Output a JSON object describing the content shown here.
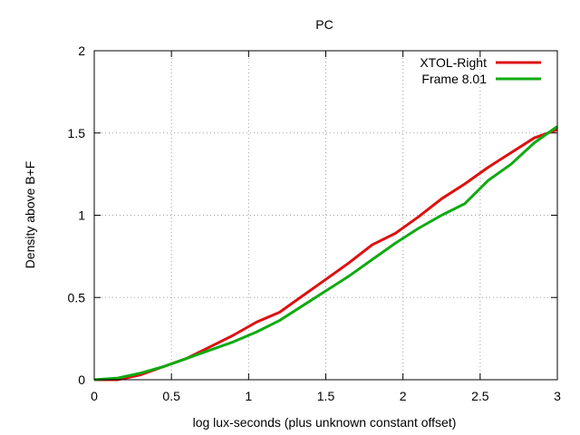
{
  "chart_data": {
    "type": "line",
    "title": "PC",
    "xlabel": "log lux-seconds (plus unknown constant offset)",
    "ylabel": "Density above B+F",
    "xlim": [
      0,
      3
    ],
    "ylim": [
      0,
      2
    ],
    "x_ticks": [
      0,
      0.5,
      1,
      1.5,
      2,
      2.5,
      3
    ],
    "x_tick_labels": [
      "0",
      "0.5",
      "1",
      "1.5",
      "2",
      "2.5",
      "3"
    ],
    "y_ticks": [
      0,
      0.5,
      1,
      1.5,
      2
    ],
    "y_tick_labels": [
      "0",
      "0.5",
      "1",
      "1.5",
      "2"
    ],
    "grid": true,
    "legend_position": "top-right",
    "series": [
      {
        "name": "XTOL-Right",
        "color": "#dd1111",
        "x": [
          0,
          0.15,
          0.3,
          0.45,
          0.6,
          0.75,
          0.9,
          1.05,
          1.2,
          1.35,
          1.5,
          1.65,
          1.8,
          1.95,
          2.1,
          2.25,
          2.4,
          2.55,
          2.7,
          2.85,
          3.0
        ],
        "y": [
          0,
          0,
          0.03,
          0.08,
          0.13,
          0.2,
          0.27,
          0.35,
          0.41,
          0.51,
          0.61,
          0.71,
          0.82,
          0.89,
          0.99,
          1.1,
          1.19,
          1.29,
          1.38,
          1.47,
          1.52
        ]
      },
      {
        "name": "Frame 8.01",
        "color": "#11aa11",
        "x": [
          0,
          0.15,
          0.3,
          0.45,
          0.6,
          0.75,
          0.9,
          1.05,
          1.2,
          1.35,
          1.5,
          1.65,
          1.8,
          1.95,
          2.1,
          2.25,
          2.4,
          2.55,
          2.7,
          2.85,
          3.0
        ],
        "y": [
          0,
          0.01,
          0.04,
          0.08,
          0.13,
          0.18,
          0.23,
          0.29,
          0.36,
          0.45,
          0.54,
          0.63,
          0.73,
          0.83,
          0.92,
          1.0,
          1.07,
          1.21,
          1.31,
          1.44,
          1.54
        ]
      }
    ]
  }
}
